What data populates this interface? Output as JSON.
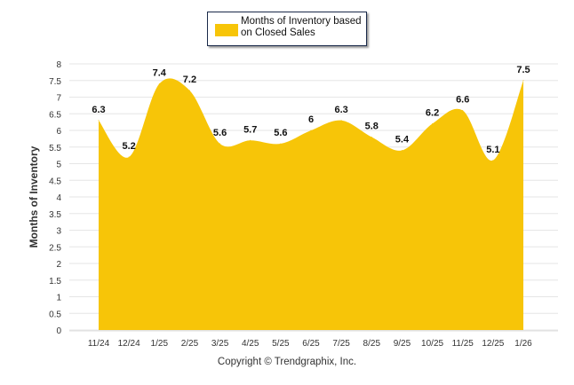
{
  "chart_data": {
    "type": "area",
    "categories": [
      "11/24",
      "12/24",
      "1/25",
      "2/25",
      "3/25",
      "4/25",
      "5/25",
      "6/25",
      "7/25",
      "8/25",
      "9/25",
      "10/25",
      "11/25",
      "12/25",
      "1/26"
    ],
    "series": [
      {
        "name": "Months of Inventory based on Closed Sales",
        "values": [
          6.3,
          5.2,
          7.4,
          7.2,
          5.6,
          5.7,
          5.6,
          6,
          6.3,
          5.8,
          5.4,
          6.2,
          6.6,
          5.1,
          7.5
        ],
        "color": "#f7c508"
      }
    ],
    "ylabel": "Months of Inventory",
    "ylim": [
      0,
      8
    ],
    "yticks": [
      "0",
      "0.5",
      "1",
      "1.5",
      "2",
      "2.5",
      "3",
      "3.5",
      "4",
      "4.5",
      "5",
      "5.5",
      "6",
      "6.5",
      "7",
      "7.5",
      "8"
    ],
    "grid": true,
    "legend": "top-center"
  },
  "legend_label": "Months of Inventory based on Closed Sales",
  "copyright": "Copyright © Trendgraphix, Inc."
}
